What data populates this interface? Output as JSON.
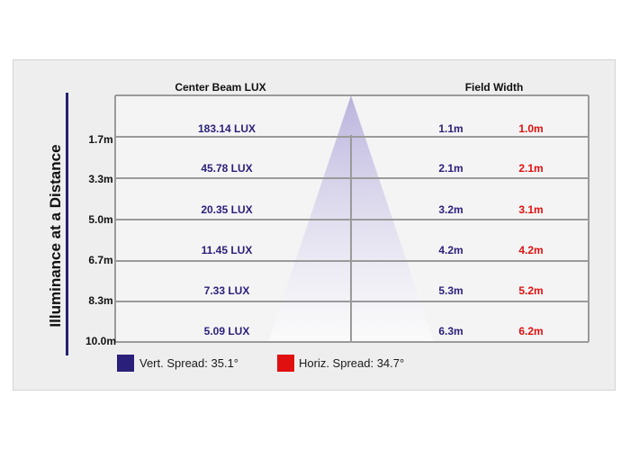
{
  "colors": {
    "vertical": "#2a1f7a",
    "horizontal": "#e01010",
    "lux_text": "#2a1f7a",
    "grid": "#9a9a9a",
    "cone": "#b7b0dc"
  },
  "chart_data": {
    "type": "table",
    "title": "Illuminance at a Distance",
    "column_headers": {
      "lux": "Center Beam LUX",
      "field": "Field Width"
    },
    "rows": [
      {
        "distance": "1.7m",
        "lux": "183.14 LUX",
        "vert": "1.1m",
        "horiz": "1.0m"
      },
      {
        "distance": "3.3m",
        "lux": "45.78 LUX",
        "vert": "2.1m",
        "horiz": "2.1m"
      },
      {
        "distance": "5.0m",
        "lux": "20.35 LUX",
        "vert": "3.2m",
        "horiz": "3.1m"
      },
      {
        "distance": "6.7m",
        "lux": "11.45 LUX",
        "vert": "4.2m",
        "horiz": "4.2m"
      },
      {
        "distance": "8.3m",
        "lux": "7.33 LUX",
        "vert": "5.3m",
        "horiz": "5.2m"
      },
      {
        "distance": "10.0m",
        "lux": "5.09 LUX",
        "vert": "6.3m",
        "horiz": "6.2m"
      }
    ],
    "legend": [
      {
        "label": "Vert. Spread: 35.1°",
        "color": "#2a1f7a"
      },
      {
        "label": "Horiz. Spread: 34.7°",
        "color": "#e01010"
      }
    ]
  }
}
